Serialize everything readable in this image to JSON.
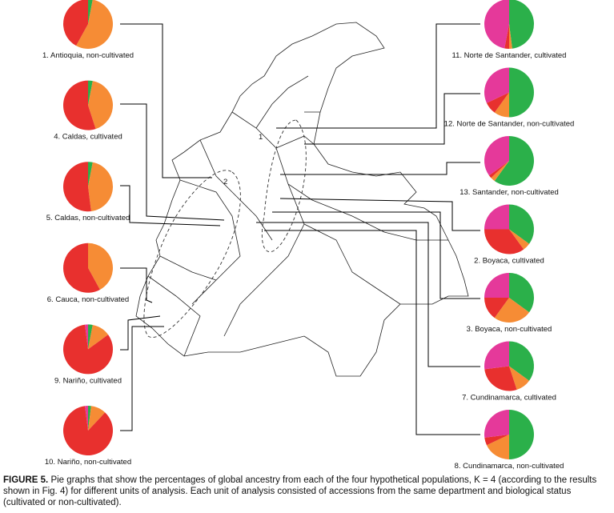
{
  "map_labels": [
    "1",
    "2"
  ],
  "caption": {
    "label": "FIGURE 5.",
    "text": "Pie graphs that show the percentages of global ancestry from each of the four hypothetical populations, K = 4 (according to the results shown in Fig. 4) for different units of analysis. Each unit of analysis consisted of accessions from the same department and biological status (cultivated or non-cultivated)."
  },
  "chart_data": [
    {
      "type": "pie",
      "title": "1. Antioquia, non-cultivated",
      "values": [
        3,
        55,
        42,
        0
      ],
      "colors": [
        "#2bb04a",
        "#f68c35",
        "#e8302e",
        "#e5399a"
      ]
    },
    {
      "type": "pie",
      "title": "4. Caldas, cultivated",
      "values": [
        3,
        42,
        55,
        0
      ],
      "colors": [
        "#2bb04a",
        "#f68c35",
        "#e8302e",
        "#e5399a"
      ]
    },
    {
      "type": "pie",
      "title": "5. Caldas, non-cultivated",
      "values": [
        3,
        45,
        52,
        0
      ],
      "colors": [
        "#2bb04a",
        "#f68c35",
        "#e8302e",
        "#e5399a"
      ]
    },
    {
      "type": "pie",
      "title": "6. Cauca, non-cultivated",
      "values": [
        0,
        42,
        58,
        0
      ],
      "colors": [
        "#2bb04a",
        "#f68c35",
        "#e8302e",
        "#e5399a"
      ]
    },
    {
      "type": "pie",
      "title": "9. Nariño, cultivated",
      "values": [
        3,
        12,
        83,
        2
      ],
      "colors": [
        "#2bb04a",
        "#f68c35",
        "#e8302e",
        "#e5399a"
      ]
    },
    {
      "type": "pie",
      "title": "10. Nariño, non-cultivated",
      "values": [
        2,
        10,
        86,
        2
      ],
      "colors": [
        "#2bb04a",
        "#f68c35",
        "#e8302e",
        "#e5399a"
      ]
    },
    {
      "type": "pie",
      "title": "11. Norte de Santander, cultivated",
      "values": [
        48,
        2,
        3,
        47
      ],
      "colors": [
        "#2bb04a",
        "#f68c35",
        "#e8302e",
        "#e5399a"
      ]
    },
    {
      "type": "pie",
      "title": "12. Norte de Santander, non-cultivated",
      "values": [
        50,
        10,
        8,
        32
      ],
      "colors": [
        "#2bb04a",
        "#f68c35",
        "#e8302e",
        "#e5399a"
      ]
    },
    {
      "type": "pie",
      "title": "13. Santander, non-cultivated",
      "values": [
        60,
        3,
        2,
        35
      ],
      "colors": [
        "#2bb04a",
        "#f68c35",
        "#e8302e",
        "#e5399a"
      ]
    },
    {
      "type": "pie",
      "title": "2. Boyaca, cultivated",
      "values": [
        35,
        5,
        35,
        25
      ],
      "colors": [
        "#2bb04a",
        "#f68c35",
        "#e8302e",
        "#e5399a"
      ]
    },
    {
      "type": "pie",
      "title": "3. Boyaca, non-cultivated",
      "values": [
        35,
        25,
        15,
        25
      ],
      "colors": [
        "#2bb04a",
        "#f68c35",
        "#e8302e",
        "#e5399a"
      ]
    },
    {
      "type": "pie",
      "title": "7. Cundinamarca, cultivated",
      "values": [
        35,
        10,
        28,
        27
      ],
      "colors": [
        "#2bb04a",
        "#f68c35",
        "#e8302e",
        "#e5399a"
      ]
    },
    {
      "type": "pie",
      "title": "8. Cundinamarca, non-cultivated",
      "values": [
        50,
        18,
        5,
        27
      ],
      "colors": [
        "#2bb04a",
        "#f68c35",
        "#e8302e",
        "#e5399a"
      ]
    }
  ]
}
